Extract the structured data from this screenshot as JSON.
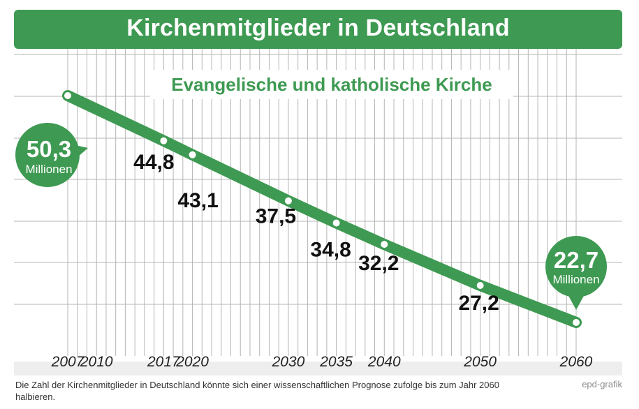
{
  "banner_title": "Kirchenmitglieder in Deutschland",
  "caption": "Die Zahl der Kirchenmitglieder in Deutschland könnte sich einer wissenschaftlichen Prognose zufolge bis zum Jahr 2060 halbieren.",
  "source": "epd-grafik",
  "colors": {
    "accent": "#3e9a52",
    "grid": "#b5b5b5",
    "label": "#111111",
    "bubble_text": "#ffffff"
  },
  "chart_data": {
    "type": "line",
    "title": "Kirchenmitglieder in Deutschland",
    "subtitle": "Evangelische und katholische Kirche",
    "x_ticks": [
      2007,
      2010,
      2017,
      2020,
      2030,
      2035,
      2040,
      2050,
      2060
    ],
    "xlim": [
      2007,
      2060
    ],
    "ylim": [
      20,
      52
    ],
    "grid": "vertical every year, horizontal lines",
    "series": [
      {
        "name": "",
        "x": [
          2007,
          2017,
          2020,
          2030,
          2035,
          2040,
          2050,
          2060
        ],
        "y": [
          50.3,
          44.8,
          43.1,
          37.5,
          34.8,
          32.2,
          27.2,
          22.7
        ],
        "labels": [
          "50,3",
          "44,8",
          "43,1",
          "37,5",
          "34,8",
          "32,2",
          "27,2",
          "22,7"
        ]
      }
    ],
    "highlight_unit": "Millionen"
  }
}
